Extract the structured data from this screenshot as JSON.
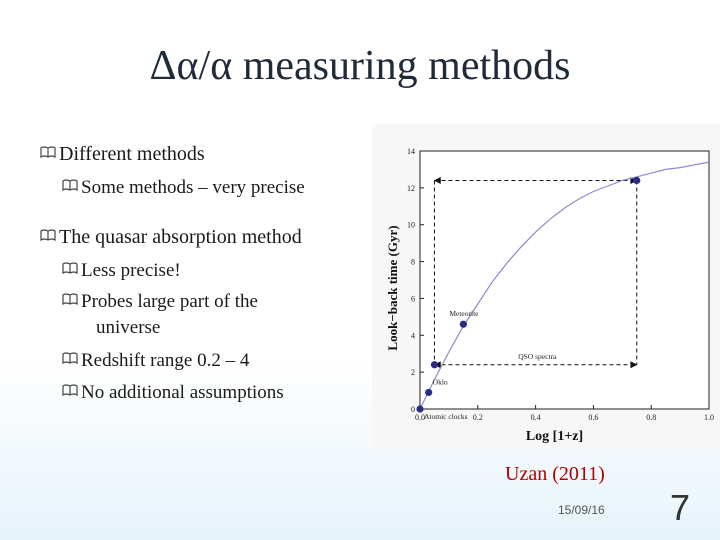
{
  "slide": {
    "title": "Δα/α measuring methods",
    "bullets": [
      {
        "level": 1,
        "text": "Different methods"
      },
      {
        "level": 2,
        "text": "Some methods – very precise"
      },
      {
        "level": 1,
        "text": "The quasar absorption method"
      },
      {
        "level": 2,
        "text": "Less precise!"
      },
      {
        "level": 2,
        "text": "Probes large part of the"
      },
      {
        "level": 2,
        "text": "universe"
      },
      {
        "level": 2,
        "text": "Redshift range 0.2 – 4"
      },
      {
        "level": 2,
        "text": "No additional assumptions"
      }
    ],
    "citation_author": "Uzan",
    "citation_year": "2011",
    "date": "15/09/16",
    "slide_number": "7",
    "bullet_icon": "book-icon",
    "colors": {
      "title": "#1f2b3a",
      "citation": "#b00000",
      "points": "#2b2b8a",
      "curve": "#8a8ad0"
    }
  },
  "chart_data": {
    "type": "scatter",
    "xlabel": "Log  [1+z]",
    "ylabel": "Look−back time  (Gyr)",
    "xlim": [
      0,
      1.0
    ],
    "ylim": [
      0,
      14
    ],
    "xticks": [
      "0.0",
      "0.2",
      "0.4",
      "0.6",
      "0.8",
      "1.0"
    ],
    "yticks": [
      "0",
      "2",
      "4",
      "6",
      "8",
      "10",
      "12",
      "14"
    ],
    "curve": {
      "x": [
        0,
        0.05,
        0.1,
        0.15,
        0.2,
        0.25,
        0.3,
        0.35,
        0.4,
        0.45,
        0.5,
        0.55,
        0.6,
        0.65,
        0.7,
        0.75,
        0.8,
        0.85,
        0.9,
        0.95,
        1.0
      ],
      "y": [
        0,
        1.6,
        3.1,
        4.5,
        5.7,
        6.9,
        7.9,
        8.8,
        9.6,
        10.3,
        10.9,
        11.4,
        11.8,
        12.1,
        12.4,
        12.6,
        12.8,
        13.0,
        13.1,
        13.25,
        13.4
      ]
    },
    "points": [
      {
        "label": "Atomic clocks",
        "x": 0.0,
        "y": 0.0
      },
      {
        "label": "Oklo",
        "x": 0.03,
        "y": 0.9
      },
      {
        "label": "",
        "x": 0.05,
        "y": 2.4
      },
      {
        "label": "Meteorite",
        "x": 0.15,
        "y": 4.6
      },
      {
        "label": "QSO spectra",
        "x": "",
        "y": ""
      },
      {
        "label": "",
        "x": 0.75,
        "y": 12.4
      }
    ],
    "range_box": {
      "x": [
        0.05,
        0.75
      ],
      "y": [
        2.4,
        12.4
      ]
    }
  }
}
